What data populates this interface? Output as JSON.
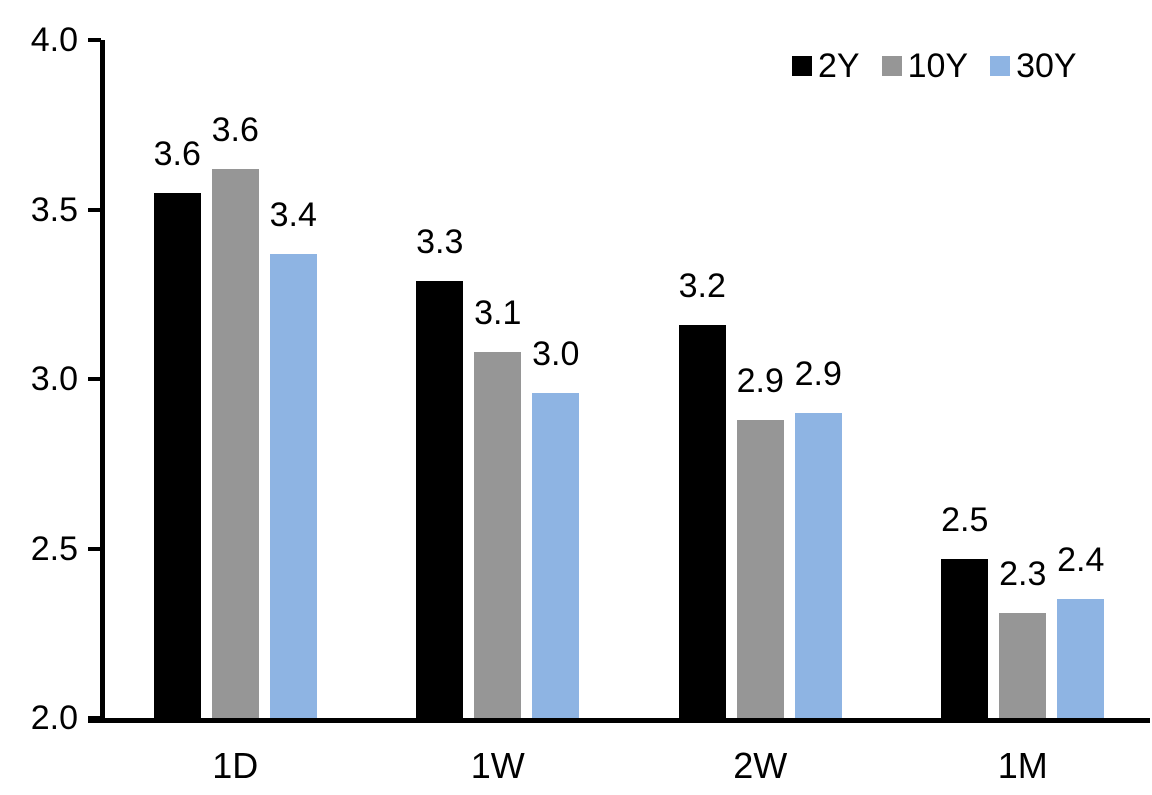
{
  "chart_data": {
    "type": "bar",
    "title": "",
    "xlabel": "",
    "ylabel": "",
    "categories": [
      "1D",
      "1W",
      "2W",
      "1M"
    ],
    "series": [
      {
        "name": "2Y",
        "color": "#000000",
        "values": [
          3.55,
          3.29,
          3.16,
          2.47
        ],
        "labels": [
          "3.6",
          "3.3",
          "3.2",
          "2.5"
        ]
      },
      {
        "name": "10Y",
        "color": "#969696",
        "values": [
          3.62,
          3.08,
          2.88,
          2.31
        ],
        "labels": [
          "3.6",
          "3.1",
          "2.9",
          "2.3"
        ]
      },
      {
        "name": "30Y",
        "color": "#8EB4E3",
        "values": [
          3.37,
          2.96,
          2.9,
          2.35
        ],
        "labels": [
          "3.4",
          "3.0",
          "2.9",
          "2.4"
        ]
      }
    ],
    "ylim": [
      2.0,
      4.0
    ],
    "ytick_labels": [
      "2.0",
      "2.5",
      "3.0",
      "3.5",
      "4.0"
    ],
    "ytick_values": [
      2.0,
      2.5,
      3.0,
      3.5,
      4.0
    ],
    "grid": false,
    "legend_position": "top-right",
    "axis_color": "#000000",
    "text_color": "#000000",
    "background_color": "#FFFFFF"
  }
}
